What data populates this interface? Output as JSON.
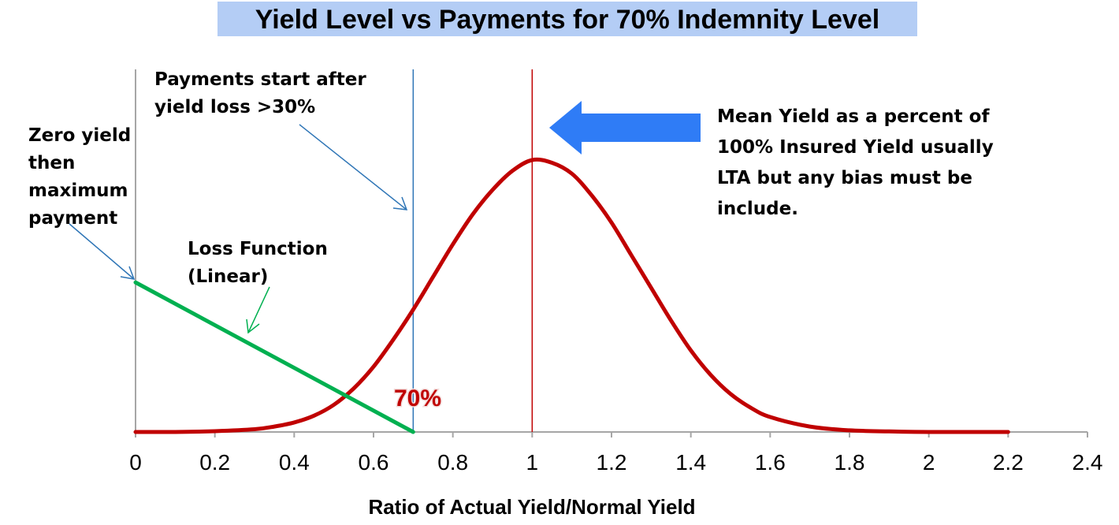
{
  "chart_data": {
    "type": "line",
    "title": "Yield Level vs Payments for 70% Indemnity Level",
    "xlabel": "Ratio of Actual Yield/Normal Yield",
    "ylabel": "",
    "xlim": [
      0,
      2.4
    ],
    "x_ticks": [
      "0",
      "0.2",
      "0.4",
      "0.6",
      "0.8",
      "1",
      "1.2",
      "1.4",
      "1.6",
      "1.8",
      "2",
      "2.2",
      "2.4"
    ],
    "grid": false,
    "legend": "none",
    "series": [
      {
        "kind": "yield-distribution",
        "color": "#c00000",
        "x": [
          0,
          0.1,
          0.2,
          0.3,
          0.35,
          0.4,
          0.45,
          0.5,
          0.55,
          0.6,
          0.65,
          0.7,
          0.75,
          0.8,
          0.85,
          0.9,
          0.95,
          1.0,
          1.05,
          1.1,
          1.15,
          1.2,
          1.25,
          1.3,
          1.35,
          1.4,
          1.45,
          1.5,
          1.55,
          1.6,
          1.7,
          1.8,
          1.9,
          2.0,
          2.2
        ],
        "y": [
          0,
          0,
          0.003,
          0.01,
          0.02,
          0.035,
          0.06,
          0.1,
          0.16,
          0.24,
          0.34,
          0.45,
          0.57,
          0.69,
          0.8,
          0.89,
          0.96,
          1.0,
          0.99,
          0.95,
          0.87,
          0.77,
          0.65,
          0.53,
          0.41,
          0.3,
          0.21,
          0.14,
          0.09,
          0.055,
          0.02,
          0.006,
          0.002,
          0,
          0
        ]
      },
      {
        "kind": "loss-function",
        "color": "#00b050",
        "x": [
          0,
          0.7
        ],
        "y": [
          0.55,
          0
        ]
      }
    ],
    "reference_lines": [
      {
        "x": 0.7,
        "color": "#2e75b6"
      },
      {
        "x": 1.0,
        "color": "#c00000"
      }
    ],
    "annotations": {
      "payments_start": [
        "Payments start after",
        "yield loss >30%"
      ],
      "zero_yield": [
        "Zero yield",
        "then",
        "maximum",
        "payment"
      ],
      "loss_function": [
        "Loss Function",
        "(Linear)"
      ],
      "mean_yield": [
        "Mean Yield as a percent of",
        "100% Insured Yield usually",
        "LTA but any bias must be",
        "include."
      ],
      "indemnity_label": "70%"
    },
    "colors": {
      "title_background": "#b4cdf5",
      "mean_arrow": "#2f7cf6",
      "pointer_blue": "#2e75b6",
      "pointer_green": "#00b050"
    }
  }
}
